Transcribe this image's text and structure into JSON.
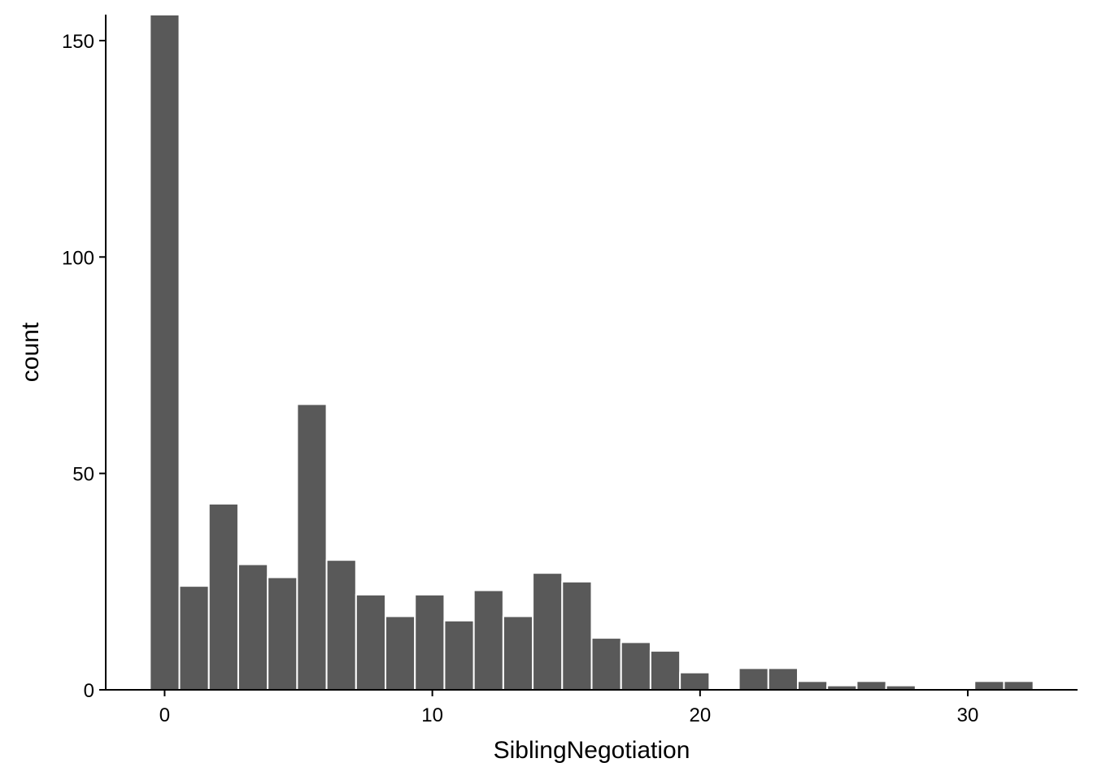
{
  "chart_data": {
    "type": "bar",
    "title": "",
    "xlabel": "SiblingNegotiation",
    "ylabel": "count",
    "xlim": [
      -2.2,
      34.1
    ],
    "ylim": [
      0,
      156
    ],
    "bin_width": 1.1,
    "x_ticks": [
      0,
      10,
      20,
      30
    ],
    "y_ticks": [
      0,
      50,
      100,
      150
    ],
    "grid": false,
    "bars": [
      {
        "x": 0.0,
        "count": 156
      },
      {
        "x": 1.1,
        "count": 24
      },
      {
        "x": 2.2,
        "count": 43
      },
      {
        "x": 3.3,
        "count": 29
      },
      {
        "x": 4.4,
        "count": 26
      },
      {
        "x": 5.5,
        "count": 66
      },
      {
        "x": 6.6,
        "count": 30
      },
      {
        "x": 7.7,
        "count": 22
      },
      {
        "x": 8.8,
        "count": 17
      },
      {
        "x": 9.9,
        "count": 22
      },
      {
        "x": 11.0,
        "count": 16
      },
      {
        "x": 12.1,
        "count": 23
      },
      {
        "x": 13.2,
        "count": 17
      },
      {
        "x": 14.3,
        "count": 27
      },
      {
        "x": 15.4,
        "count": 25
      },
      {
        "x": 16.5,
        "count": 12
      },
      {
        "x": 17.6,
        "count": 11
      },
      {
        "x": 18.7,
        "count": 9
      },
      {
        "x": 19.8,
        "count": 4
      },
      {
        "x": 20.9,
        "count": 0
      },
      {
        "x": 22.0,
        "count": 5
      },
      {
        "x": 23.1,
        "count": 5
      },
      {
        "x": 24.2,
        "count": 2
      },
      {
        "x": 25.3,
        "count": 1
      },
      {
        "x": 26.4,
        "count": 2
      },
      {
        "x": 27.5,
        "count": 1
      },
      {
        "x": 28.6,
        "count": 0
      },
      {
        "x": 29.7,
        "count": 0
      },
      {
        "x": 30.8,
        "count": 2
      },
      {
        "x": 31.9,
        "count": 2
      }
    ],
    "colors": {
      "bar_fill": "#595959",
      "bar_outline": "#ffffff",
      "axis": "#000000"
    }
  }
}
